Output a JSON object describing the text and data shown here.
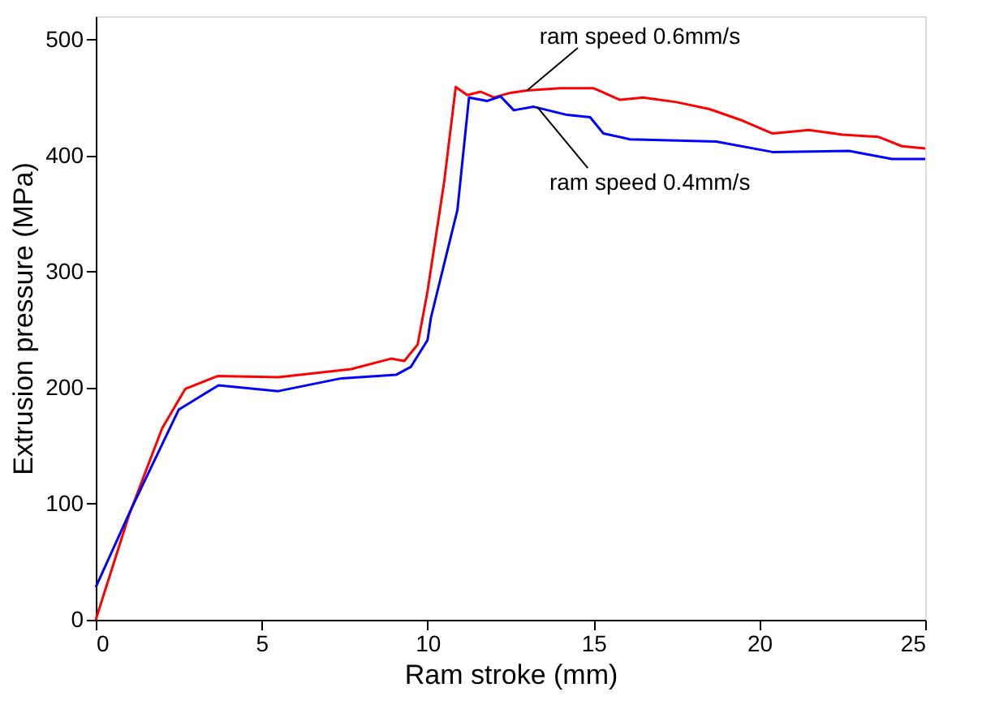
{
  "chart_data": {
    "type": "line",
    "xlabel": "Ram stroke (mm)",
    "ylabel": "Extrusion pressure (MPa)",
    "xlim": [
      0,
      25
    ],
    "xticks": [
      0,
      5,
      10,
      15,
      20,
      25
    ],
    "ylim": [
      0,
      520
    ],
    "yticks": [
      0,
      100,
      200,
      300,
      400,
      500
    ],
    "grid": false,
    "legend": false,
    "line_style": "solid",
    "marker": "none",
    "series": [
      {
        "color": "#ff0000",
        "x": [
          0,
          1,
          2,
          2.7,
          3.67,
          5.5,
          7.7,
          8.9,
          9.3,
          9.7,
          10.0,
          10.5,
          10.85,
          11.2,
          11.6,
          12,
          12.5,
          13,
          14,
          15,
          15.8,
          16.5,
          17.5,
          18.5,
          19.5,
          20.4,
          21.5,
          22.5,
          23.6,
          24.3,
          25
        ],
        "values": [
          0,
          90,
          165,
          199,
          210,
          209,
          216,
          225,
          223,
          237,
          283,
          377,
          459,
          452,
          455,
          450,
          454,
          456,
          458,
          458,
          448,
          450,
          446,
          440,
          430,
          419,
          422,
          418,
          416,
          408,
          406
        ]
      },
      {
        "color": "#0000ff",
        "x": [
          0,
          1.06,
          2.5,
          3.7,
          5.5,
          7.4,
          9.05,
          9.5,
          10.0,
          10.1,
          10.9,
          11.25,
          11.8,
          12.2,
          12.6,
          13.2,
          14.2,
          14.9,
          15.3,
          16.1,
          18.7,
          20.4,
          22.7,
          24,
          25
        ],
        "values": [
          28,
          95,
          181,
          202,
          197,
          208,
          211,
          218,
          241,
          260,
          353,
          450,
          447,
          451,
          439,
          442,
          435,
          433,
          419,
          414,
          412,
          403,
          404,
          397,
          397
        ]
      }
    ],
    "annotations": [
      {
        "text": "ram speed 0.6mm/s",
        "x": 13.0,
        "y": 456
      },
      {
        "text": "ram speed 0.4mm/s",
        "x": 13.3,
        "y": 442
      }
    ]
  }
}
